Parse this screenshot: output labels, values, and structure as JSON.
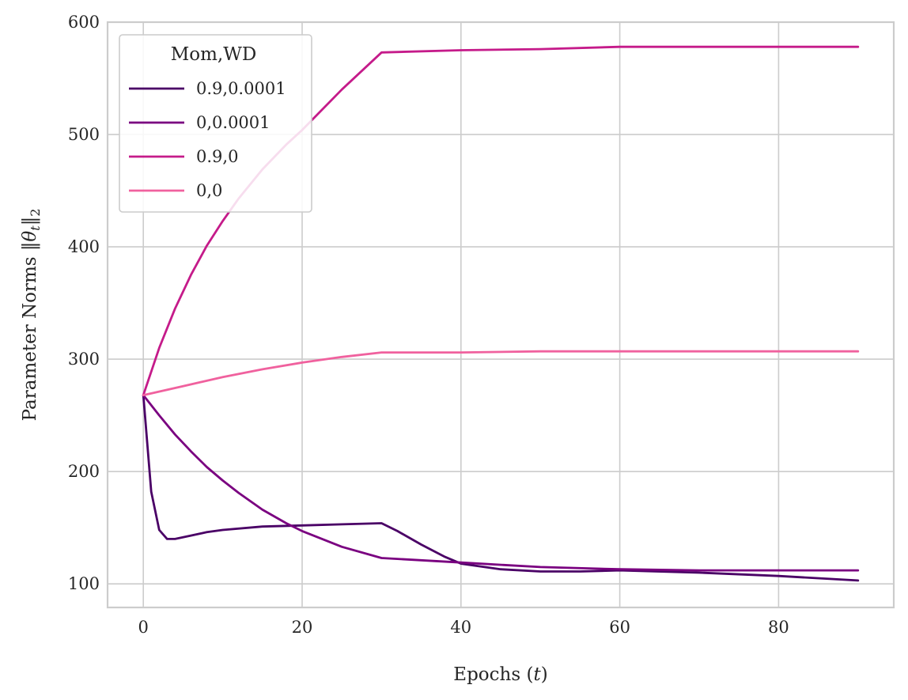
{
  "chart_data": {
    "type": "line",
    "title": "",
    "xlabel": "Epochs (t)",
    "ylabel": "Parameter Norms ‖θt‖2",
    "xlim": [
      -4.5,
      94.5
    ],
    "ylim": [
      79,
      600
    ],
    "xticks": [
      0,
      20,
      40,
      60,
      80
    ],
    "yticks": [
      100,
      200,
      300,
      400,
      500,
      600
    ],
    "grid": true,
    "legend": {
      "title": "Mom,WD",
      "position": "top-left"
    },
    "series": [
      {
        "name": "0.9,0.0001",
        "color": "#4a0066",
        "x": [
          0,
          1,
          2,
          3,
          4,
          6,
          8,
          10,
          15,
          20,
          25,
          30,
          32,
          35,
          38,
          40,
          45,
          50,
          55,
          60,
          70,
          80,
          90
        ],
        "y": [
          268,
          182,
          148,
          140,
          140,
          143,
          146,
          148,
          151,
          152,
          153,
          154,
          147,
          135,
          124,
          118,
          113,
          111,
          111,
          112,
          110,
          107,
          103
        ]
      },
      {
        "name": "0,0.0001",
        "color": "#7a0080",
        "x": [
          0,
          2,
          4,
          6,
          8,
          10,
          12,
          15,
          18,
          20,
          25,
          30,
          40,
          50,
          60,
          70,
          80,
          90
        ],
        "y": [
          268,
          250,
          233,
          218,
          204,
          192,
          181,
          166,
          154,
          147,
          133,
          123,
          119,
          115,
          113,
          112,
          112,
          112
        ]
      },
      {
        "name": "0.9,0",
        "color": "#c51b8a",
        "x": [
          0,
          2,
          4,
          6,
          8,
          10,
          12,
          15,
          18,
          20,
          25,
          30,
          40,
          50,
          60,
          70,
          80,
          90
        ],
        "y": [
          268,
          310,
          345,
          375,
          401,
          423,
          443,
          469,
          491,
          504,
          540,
          573,
          575,
          576,
          578,
          578,
          578,
          578
        ]
      },
      {
        "name": "0,0",
        "color": "#f0619e",
        "x": [
          0,
          5,
          10,
          15,
          20,
          25,
          30,
          40,
          50,
          60,
          70,
          80,
          90
        ],
        "y": [
          268,
          276,
          284,
          291,
          297,
          302,
          306,
          306,
          307,
          307,
          307,
          307,
          307
        ]
      }
    ]
  }
}
